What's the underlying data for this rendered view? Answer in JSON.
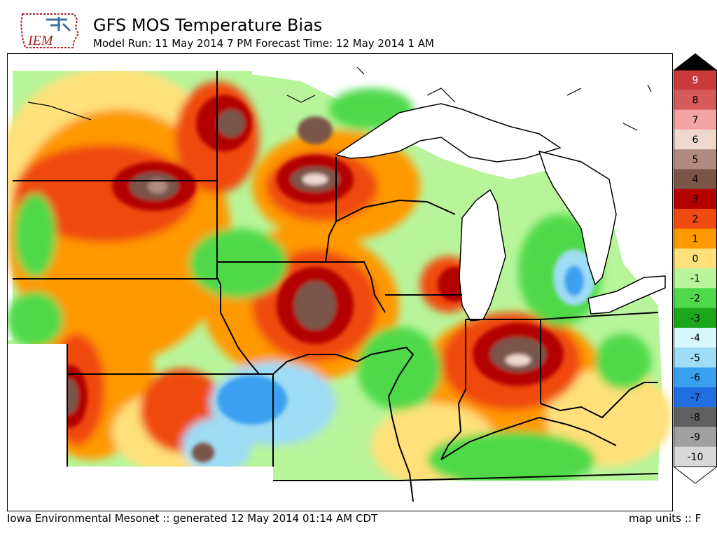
{
  "header": {
    "title": "GFS MOS Temperature Bias",
    "subtitle": "Model Run: 11 May 2014 7 PM Forecast Time: 12 May 2014 1 AM"
  },
  "logo": {
    "text": "IEM",
    "icon": "iowa-state-outline-icon"
  },
  "footer": {
    "source": "Iowa Environmental Mesonet :: generated 12 May 2014 01:14 AM CDT",
    "units": "map units :: F"
  },
  "colorbar": {
    "labels": [
      "9",
      "8",
      "7",
      "6",
      "5",
      "4",
      "3",
      "2",
      "1",
      "0",
      "-1",
      "-2",
      "-3",
      "-4",
      "-5",
      "-6",
      "-7",
      "-8",
      "-9",
      "-10"
    ],
    "colors": [
      "#c93a3a",
      "#d65a5a",
      "#f2a3a3",
      "#efd9cf",
      "#b08a7e",
      "#7a5548",
      "#b30000",
      "#f04a10",
      "#ff9900",
      "#ffe07a",
      "#b8f59a",
      "#50d94a",
      "#1aa81a",
      "#d8f8ff",
      "#9fdcf5",
      "#3aa0f0",
      "#1f6fe0",
      "#606060",
      "#a0a0a0",
      "#d8d8d8"
    ]
  }
}
